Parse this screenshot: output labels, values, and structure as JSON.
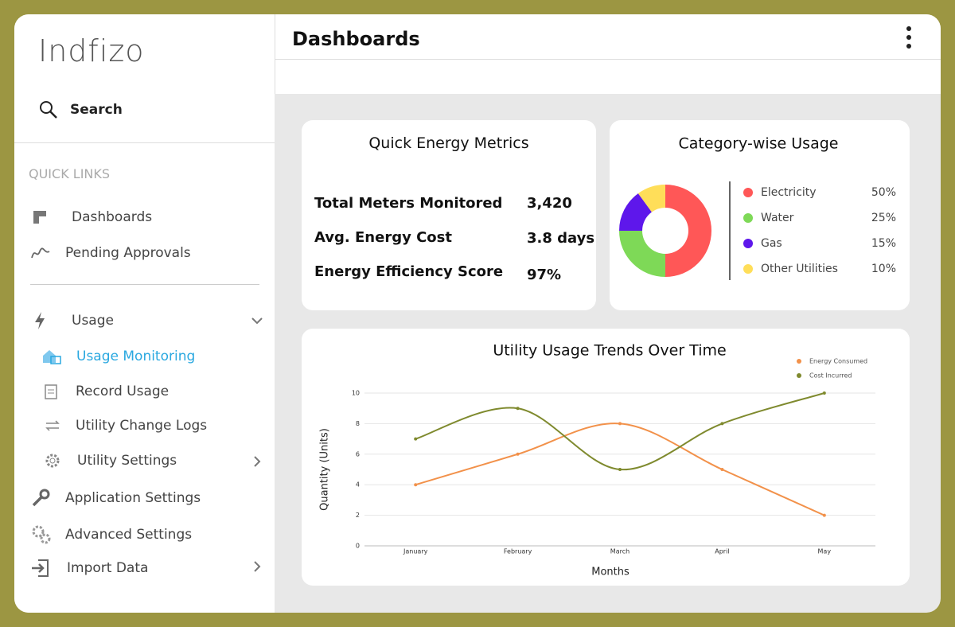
{
  "sidebar": {
    "logo": "Indfizo",
    "search": "Search",
    "quick_links_heading": "QUICK LINKS",
    "quick_links": [
      "Dashboards",
      "Pending Approvals"
    ],
    "menu": [
      "Usage",
      "Usage Monitoring",
      "Record Usage",
      "Utility Change Logs",
      "Utility Settings",
      "Application Settings",
      "Advanced Settings",
      "Import Data"
    ]
  },
  "header": {
    "title": "Dashboards"
  },
  "metrics": {
    "title": "Quick Energy Metrics",
    "rows": [
      {
        "label": "Total Meters Monitored",
        "value": "3,420"
      },
      {
        "label": "Avg. Energy Cost",
        "value": "3.8 days"
      },
      {
        "label": "Energy Efficiency Score",
        "value": "97%"
      }
    ]
  },
  "chart_data": [
    {
      "type": "pie",
      "title": "Category-wise Usage",
      "donut": true,
      "categories": [
        "Electricity",
        "Water",
        "Gas",
        "Other Utilities"
      ],
      "values": [
        50,
        25,
        15,
        10
      ],
      "value_labels": [
        "50%",
        "25%",
        "15%",
        "10%"
      ],
      "colors": [
        "#ff5757",
        "#7ed957",
        "#5e17eb",
        "#ffde59"
      ]
    },
    {
      "type": "line",
      "title": "Utility Usage Trends Over Time",
      "x_label": "Months",
      "y_label": "Quantity (Units)",
      "categories": [
        "January",
        "February",
        "March",
        "April",
        "May"
      ],
      "series": [
        {
          "name": "Energy Consumed",
          "color": "#f2914a",
          "values": [
            4,
            6,
            8,
            5,
            2
          ]
        },
        {
          "name": "Cost Incurred",
          "color": "#7f8a2e",
          "values": [
            7,
            9,
            5,
            8,
            10
          ]
        }
      ],
      "ylim": [
        0,
        10
      ],
      "yticks": [
        0,
        2,
        4,
        6,
        8,
        10
      ],
      "grid": true,
      "smooth": true,
      "legend": "top-right"
    }
  ]
}
